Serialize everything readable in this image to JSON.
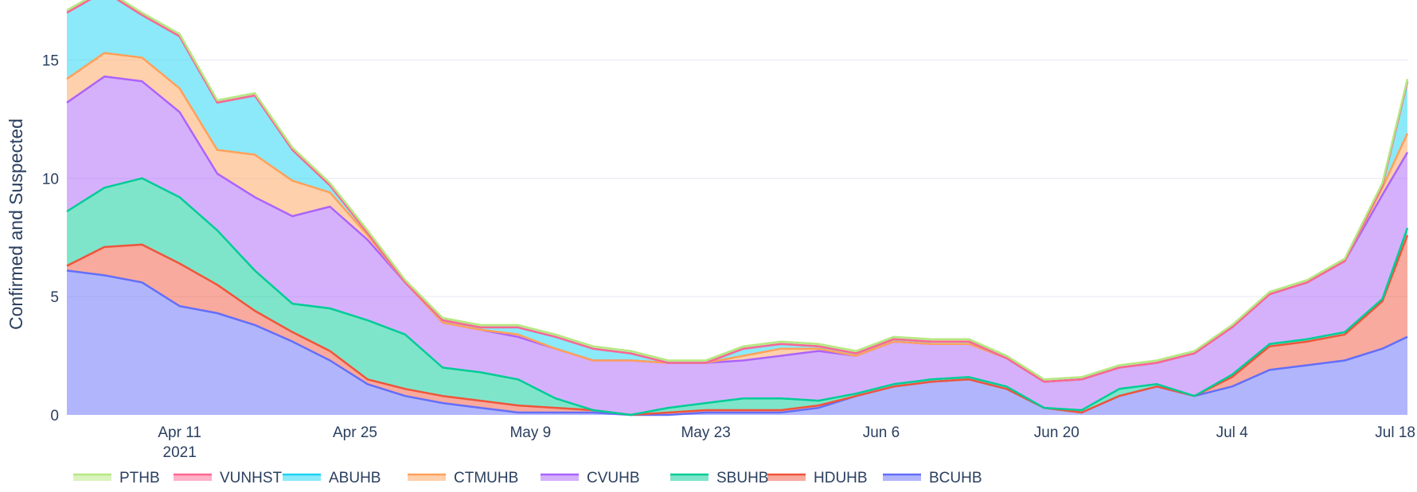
{
  "chart_data": {
    "type": "area",
    "stacked": true,
    "x_axis": {
      "type": "date",
      "tick_labels": [
        {
          "date": "2021-04-11",
          "label": "Apr 11",
          "sublabel": "2021"
        },
        {
          "date": "2021-04-25",
          "label": "Apr 25"
        },
        {
          "date": "2021-05-09",
          "label": "May 9"
        },
        {
          "date": "2021-05-23",
          "label": "May 23"
        },
        {
          "date": "2021-06-06",
          "label": "Jun 6"
        },
        {
          "date": "2021-06-20",
          "label": "Jun 20"
        },
        {
          "date": "2021-07-04",
          "label": "Jul 4"
        },
        {
          "date": "2021-07-18",
          "label": "Jul 18"
        }
      ],
      "range": [
        "2021-04-02",
        "2021-07-18"
      ]
    },
    "y_axis": {
      "title": "Confirmed and Suspected",
      "ticks": [
        0,
        5,
        10,
        15
      ],
      "range": [
        0,
        17.2
      ]
    },
    "grid": true,
    "legend_position": "bottom",
    "x": [
      "2021-04-02",
      "2021-04-05",
      "2021-04-08",
      "2021-04-11",
      "2021-04-14",
      "2021-04-17",
      "2021-04-20",
      "2021-04-23",
      "2021-04-26",
      "2021-04-29",
      "2021-05-02",
      "2021-05-05",
      "2021-05-08",
      "2021-05-11",
      "2021-05-14",
      "2021-05-17",
      "2021-05-20",
      "2021-05-23",
      "2021-05-26",
      "2021-05-29",
      "2021-06-01",
      "2021-06-04",
      "2021-06-07",
      "2021-06-10",
      "2021-06-13",
      "2021-06-16",
      "2021-06-19",
      "2021-06-22",
      "2021-06-25",
      "2021-06-28",
      "2021-07-01",
      "2021-07-04",
      "2021-07-07",
      "2021-07-10",
      "2021-07-13",
      "2021-07-16",
      "2021-07-18"
    ],
    "series": [
      {
        "name": "BCUHB",
        "color": "#636efa",
        "values": [
          6.1,
          5.9,
          5.6,
          4.6,
          4.3,
          3.8,
          3.1,
          2.3,
          1.3,
          0.8,
          0.5,
          0.3,
          0.1,
          0.1,
          0.1,
          0.0,
          0.0,
          0.1,
          0.1,
          0.1,
          0.3,
          0.8,
          1.2,
          1.4,
          1.5,
          1.1,
          0.3,
          0.1,
          0.8,
          1.2,
          0.8,
          1.2,
          1.9,
          2.1,
          2.3,
          2.8,
          3.3
        ]
      },
      {
        "name": "HDUHB",
        "color": "#ef553b",
        "values": [
          0.2,
          1.2,
          1.6,
          1.8,
          1.2,
          0.6,
          0.4,
          0.4,
          0.2,
          0.3,
          0.3,
          0.3,
          0.3,
          0.2,
          0.1,
          0.0,
          0.1,
          0.1,
          0.1,
          0.1,
          0.1,
          0.0,
          0.0,
          0.0,
          0.0,
          0.0,
          0.0,
          0.0,
          0.0,
          0.0,
          0.0,
          0.4,
          1.0,
          1.0,
          1.1,
          2.0,
          4.3
        ]
      },
      {
        "name": "SBUHB",
        "color": "#00cc96",
        "values": [
          2.3,
          2.5,
          2.8,
          2.8,
          2.3,
          1.7,
          1.2,
          1.8,
          2.5,
          2.3,
          1.2,
          1.2,
          1.1,
          0.4,
          0.0,
          0.0,
          0.2,
          0.3,
          0.5,
          0.5,
          0.2,
          0.1,
          0.1,
          0.1,
          0.1,
          0.1,
          0.0,
          0.1,
          0.3,
          0.1,
          0.0,
          0.1,
          0.1,
          0.1,
          0.1,
          0.1,
          0.3
        ]
      },
      {
        "name": "CVUHB",
        "color": "#ab63fa",
        "values": [
          4.6,
          4.7,
          4.1,
          3.6,
          2.4,
          3.1,
          3.7,
          4.3,
          3.4,
          2.2,
          1.9,
          1.8,
          1.8,
          2.1,
          2.1,
          2.3,
          1.9,
          1.7,
          1.6,
          1.8,
          2.1,
          1.6,
          1.8,
          1.5,
          1.4,
          1.2,
          1.1,
          1.3,
          0.9,
          0.9,
          1.8,
          2.0,
          2.1,
          2.4,
          3.0,
          4.4,
          3.2
        ]
      },
      {
        "name": "CTMUHB",
        "color": "#ffa15a",
        "values": [
          1.0,
          1.0,
          1.0,
          1.0,
          1.0,
          1.8,
          1.5,
          0.6,
          0.2,
          0.0,
          0.0,
          0.0,
          0.1,
          0.0,
          0.0,
          0.0,
          0.0,
          0.0,
          0.2,
          0.3,
          0.1,
          0.0,
          0.0,
          0.0,
          0.0,
          0.0,
          0.0,
          0.0,
          0.0,
          0.0,
          0.0,
          0.0,
          0.0,
          0.0,
          0.0,
          0.3,
          0.8
        ]
      },
      {
        "name": "ABUHB",
        "color": "#19d3f3",
        "values": [
          2.8,
          2.6,
          1.8,
          2.2,
          2.0,
          2.5,
          1.3,
          0.3,
          0.1,
          0.0,
          0.1,
          0.1,
          0.3,
          0.5,
          0.5,
          0.3,
          0.0,
          0.0,
          0.3,
          0.2,
          0.1,
          0.1,
          0.1,
          0.1,
          0.1,
          0.0,
          0.0,
          0.0,
          0.0,
          0.0,
          0.0,
          0.0,
          0.0,
          0.0,
          0.0,
          0.1,
          2.2
        ]
      },
      {
        "name": "VUNHST",
        "color": "#ff6692",
        "values": [
          0,
          0,
          0,
          0,
          0,
          0,
          0,
          0,
          0,
          0,
          0,
          0,
          0,
          0,
          0,
          0,
          0,
          0,
          0,
          0,
          0,
          0,
          0,
          0,
          0,
          0,
          0,
          0,
          0,
          0,
          0,
          0,
          0,
          0,
          0,
          0,
          0
        ]
      },
      {
        "name": "PTHB",
        "color": "#b6e880",
        "values": [
          0.1,
          0.1,
          0.1,
          0.1,
          0.1,
          0.1,
          0.1,
          0.1,
          0.1,
          0.1,
          0.1,
          0.1,
          0.1,
          0.1,
          0.1,
          0.1,
          0.1,
          0.1,
          0.1,
          0.1,
          0.1,
          0.1,
          0.1,
          0.1,
          0.1,
          0.1,
          0.1,
          0.1,
          0.1,
          0.1,
          0.1,
          0.1,
          0.1,
          0.1,
          0.1,
          0.1,
          0.1
        ]
      }
    ],
    "legend_order": [
      "PTHB",
      "VUNHST",
      "ABUHB",
      "CTMUHB",
      "CVUHB",
      "SBUHB",
      "HDUHB",
      "BCUHB"
    ]
  }
}
